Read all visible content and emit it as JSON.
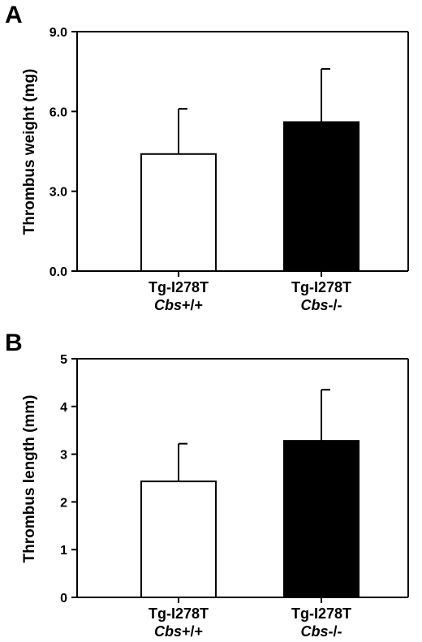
{
  "chart_data": [
    {
      "type": "bar",
      "panel": "A",
      "ylabel": "Thrombus weight (mg)",
      "ylim": [
        0,
        9
      ],
      "yticks": [
        "0.0",
        "3.0",
        "6.0",
        "9.0"
      ],
      "categories": [
        {
          "line1": "Tg-I278T",
          "gene": "Cbs",
          "genotype": "+/+"
        },
        {
          "line1": "Tg-I278T",
          "gene": "Cbs",
          "genotype": "-/-"
        }
      ],
      "values": [
        4.4,
        5.6
      ],
      "errors": [
        1.7,
        2.0
      ],
      "bar_colors": [
        "#ffffff",
        "#000000"
      ],
      "grid": false
    },
    {
      "type": "bar",
      "panel": "B",
      "ylabel": "Thrombus length (mm)",
      "ylim": [
        0,
        5
      ],
      "yticks": [
        "0",
        "1",
        "2",
        "3",
        "4",
        "5"
      ],
      "categories": [
        {
          "line1": "Tg-I278T",
          "gene": "Cbs",
          "genotype": "+/+"
        },
        {
          "line1": "Tg-I278T",
          "gene": "Cbs",
          "genotype": "-/-"
        }
      ],
      "values": [
        2.43,
        3.28
      ],
      "errors": [
        0.79,
        1.07
      ],
      "bar_colors": [
        "#ffffff",
        "#000000"
      ],
      "grid": false
    }
  ]
}
